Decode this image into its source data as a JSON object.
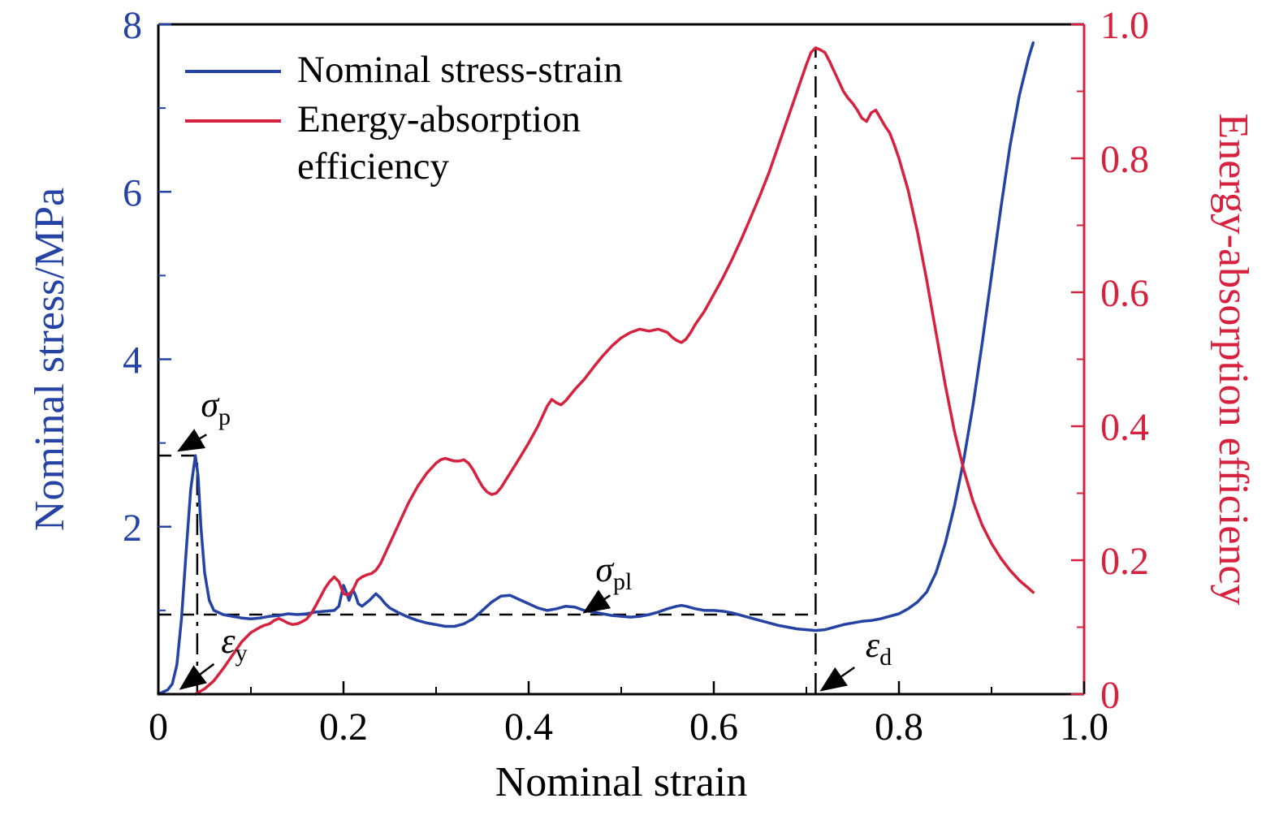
{
  "figure": {
    "background": "#ffffff"
  },
  "colors": {
    "stress": "#2543a4",
    "efficiency": "#d6213f",
    "axis": "#000000"
  },
  "legend": {
    "items": [
      {
        "label": "Nominal stress-strain",
        "color": "#2543a4"
      },
      {
        "label": "Energy-absorption efficiency",
        "color": "#d6213f"
      }
    ]
  },
  "chart_data": {
    "type": "line",
    "title": "",
    "xlabel": "Nominal strain",
    "ylabel_left": "Nominal stress/MPa",
    "ylabel_right": "Energy-absorption efficiency",
    "xlim": [
      0,
      1.0
    ],
    "ylim_left": [
      0,
      8
    ],
    "ylim_right": [
      0,
      1.0
    ],
    "grid": false,
    "legend_position": "top-left",
    "x_ticks": [
      {
        "v": 0,
        "label": "0"
      },
      {
        "v": 0.2,
        "label": "0.2"
      },
      {
        "v": 0.4,
        "label": "0.4"
      },
      {
        "v": 0.6,
        "label": "0.6"
      },
      {
        "v": 0.8,
        "label": "0.8"
      },
      {
        "v": 1.0,
        "label": "1.0"
      }
    ],
    "y_ticks_left": [
      {
        "v": 2,
        "label": "2"
      },
      {
        "v": 4,
        "label": "4"
      },
      {
        "v": 6,
        "label": "6"
      },
      {
        "v": 8,
        "label": "8"
      }
    ],
    "y_ticks_right": [
      {
        "v": 0,
        "label": "0"
      },
      {
        "v": 0.2,
        "label": "0.2"
      },
      {
        "v": 0.4,
        "label": "0.4"
      },
      {
        "v": 0.6,
        "label": "0.6"
      },
      {
        "v": 0.8,
        "label": "0.8"
      },
      {
        "v": 1.0,
        "label": "1.0"
      }
    ],
    "series": [
      {
        "name": "Nominal stress-strain",
        "axis": "left",
        "color": "#2543a4",
        "points": [
          [
            0.0,
            0.0
          ],
          [
            0.01,
            0.05
          ],
          [
            0.015,
            0.12
          ],
          [
            0.02,
            0.35
          ],
          [
            0.025,
            0.9
          ],
          [
            0.03,
            1.7
          ],
          [
            0.035,
            2.45
          ],
          [
            0.04,
            2.85
          ],
          [
            0.043,
            2.6
          ],
          [
            0.046,
            2.0
          ],
          [
            0.05,
            1.45
          ],
          [
            0.055,
            1.12
          ],
          [
            0.06,
            1.0
          ],
          [
            0.07,
            0.95
          ],
          [
            0.08,
            0.93
          ],
          [
            0.09,
            0.91
          ],
          [
            0.1,
            0.9
          ],
          [
            0.11,
            0.91
          ],
          [
            0.12,
            0.93
          ],
          [
            0.13,
            0.94
          ],
          [
            0.14,
            0.96
          ],
          [
            0.15,
            0.95
          ],
          [
            0.16,
            0.96
          ],
          [
            0.17,
            0.98
          ],
          [
            0.18,
            0.99
          ],
          [
            0.19,
            1.0
          ],
          [
            0.195,
            1.05
          ],
          [
            0.2,
            1.3
          ],
          [
            0.203,
            1.22
          ],
          [
            0.206,
            1.12
          ],
          [
            0.21,
            1.25
          ],
          [
            0.213,
            1.18
          ],
          [
            0.216,
            1.08
          ],
          [
            0.22,
            1.05
          ],
          [
            0.228,
            1.12
          ],
          [
            0.235,
            1.2
          ],
          [
            0.24,
            1.15
          ],
          [
            0.245,
            1.08
          ],
          [
            0.25,
            1.03
          ],
          [
            0.26,
            0.97
          ],
          [
            0.27,
            0.92
          ],
          [
            0.28,
            0.88
          ],
          [
            0.29,
            0.85
          ],
          [
            0.3,
            0.83
          ],
          [
            0.31,
            0.81
          ],
          [
            0.32,
            0.81
          ],
          [
            0.33,
            0.84
          ],
          [
            0.34,
            0.9
          ],
          [
            0.35,
            1.0
          ],
          [
            0.36,
            1.1
          ],
          [
            0.37,
            1.17
          ],
          [
            0.38,
            1.18
          ],
          [
            0.39,
            1.13
          ],
          [
            0.4,
            1.08
          ],
          [
            0.41,
            1.03
          ],
          [
            0.42,
            1.0
          ],
          [
            0.43,
            1.02
          ],
          [
            0.44,
            1.05
          ],
          [
            0.45,
            1.04
          ],
          [
            0.46,
            1.0
          ],
          [
            0.47,
            0.98
          ],
          [
            0.48,
            0.96
          ],
          [
            0.49,
            0.94
          ],
          [
            0.5,
            0.93
          ],
          [
            0.51,
            0.92
          ],
          [
            0.52,
            0.93
          ],
          [
            0.53,
            0.95
          ],
          [
            0.54,
            0.98
          ],
          [
            0.55,
            1.02
          ],
          [
            0.56,
            1.05
          ],
          [
            0.565,
            1.06
          ],
          [
            0.57,
            1.05
          ],
          [
            0.58,
            1.02
          ],
          [
            0.59,
            1.0
          ],
          [
            0.6,
            1.0
          ],
          [
            0.61,
            0.99
          ],
          [
            0.62,
            0.97
          ],
          [
            0.63,
            0.94
          ],
          [
            0.64,
            0.91
          ],
          [
            0.65,
            0.88
          ],
          [
            0.66,
            0.85
          ],
          [
            0.67,
            0.82
          ],
          [
            0.68,
            0.8
          ],
          [
            0.69,
            0.78
          ],
          [
            0.7,
            0.77
          ],
          [
            0.71,
            0.76
          ],
          [
            0.72,
            0.77
          ],
          [
            0.73,
            0.8
          ],
          [
            0.74,
            0.83
          ],
          [
            0.75,
            0.85
          ],
          [
            0.76,
            0.87
          ],
          [
            0.77,
            0.88
          ],
          [
            0.78,
            0.9
          ],
          [
            0.79,
            0.93
          ],
          [
            0.8,
            0.96
          ],
          [
            0.81,
            1.02
          ],
          [
            0.82,
            1.1
          ],
          [
            0.83,
            1.22
          ],
          [
            0.84,
            1.45
          ],
          [
            0.85,
            1.8
          ],
          [
            0.86,
            2.25
          ],
          [
            0.87,
            2.8
          ],
          [
            0.88,
            3.45
          ],
          [
            0.89,
            4.2
          ],
          [
            0.9,
            5.0
          ],
          [
            0.91,
            5.8
          ],
          [
            0.92,
            6.55
          ],
          [
            0.93,
            7.15
          ],
          [
            0.94,
            7.6
          ],
          [
            0.945,
            7.78
          ]
        ]
      },
      {
        "name": "Energy-absorption efficiency",
        "axis": "right",
        "color": "#d6213f",
        "points": [
          [
            0.04,
            0.0
          ],
          [
            0.05,
            0.008
          ],
          [
            0.06,
            0.02
          ],
          [
            0.07,
            0.038
          ],
          [
            0.08,
            0.058
          ],
          [
            0.09,
            0.078
          ],
          [
            0.1,
            0.092
          ],
          [
            0.11,
            0.1
          ],
          [
            0.115,
            0.103
          ],
          [
            0.12,
            0.105
          ],
          [
            0.125,
            0.11
          ],
          [
            0.13,
            0.113
          ],
          [
            0.135,
            0.11
          ],
          [
            0.14,
            0.106
          ],
          [
            0.145,
            0.104
          ],
          [
            0.15,
            0.105
          ],
          [
            0.155,
            0.108
          ],
          [
            0.16,
            0.112
          ],
          [
            0.165,
            0.12
          ],
          [
            0.17,
            0.132
          ],
          [
            0.175,
            0.145
          ],
          [
            0.18,
            0.158
          ],
          [
            0.185,
            0.168
          ],
          [
            0.19,
            0.175
          ],
          [
            0.195,
            0.168
          ],
          [
            0.2,
            0.15
          ],
          [
            0.205,
            0.148
          ],
          [
            0.21,
            0.155
          ],
          [
            0.215,
            0.17
          ],
          [
            0.22,
            0.175
          ],
          [
            0.225,
            0.178
          ],
          [
            0.23,
            0.18
          ],
          [
            0.235,
            0.185
          ],
          [
            0.24,
            0.195
          ],
          [
            0.25,
            0.225
          ],
          [
            0.26,
            0.255
          ],
          [
            0.27,
            0.285
          ],
          [
            0.28,
            0.31
          ],
          [
            0.29,
            0.33
          ],
          [
            0.3,
            0.345
          ],
          [
            0.305,
            0.35
          ],
          [
            0.31,
            0.352
          ],
          [
            0.315,
            0.35
          ],
          [
            0.32,
            0.348
          ],
          [
            0.325,
            0.348
          ],
          [
            0.33,
            0.35
          ],
          [
            0.335,
            0.345
          ],
          [
            0.34,
            0.335
          ],
          [
            0.345,
            0.322
          ],
          [
            0.35,
            0.31
          ],
          [
            0.355,
            0.302
          ],
          [
            0.36,
            0.298
          ],
          [
            0.365,
            0.3
          ],
          [
            0.37,
            0.308
          ],
          [
            0.38,
            0.33
          ],
          [
            0.39,
            0.352
          ],
          [
            0.4,
            0.375
          ],
          [
            0.41,
            0.4
          ],
          [
            0.415,
            0.415
          ],
          [
            0.42,
            0.43
          ],
          [
            0.425,
            0.44
          ],
          [
            0.43,
            0.435
          ],
          [
            0.435,
            0.432
          ],
          [
            0.44,
            0.438
          ],
          [
            0.45,
            0.455
          ],
          [
            0.46,
            0.47
          ],
          [
            0.47,
            0.488
          ],
          [
            0.48,
            0.505
          ],
          [
            0.49,
            0.52
          ],
          [
            0.5,
            0.532
          ],
          [
            0.51,
            0.54
          ],
          [
            0.52,
            0.545
          ],
          [
            0.53,
            0.542
          ],
          [
            0.54,
            0.545
          ],
          [
            0.55,
            0.54
          ],
          [
            0.555,
            0.533
          ],
          [
            0.56,
            0.528
          ],
          [
            0.565,
            0.525
          ],
          [
            0.57,
            0.53
          ],
          [
            0.575,
            0.54
          ],
          [
            0.58,
            0.552
          ],
          [
            0.59,
            0.572
          ],
          [
            0.6,
            0.597
          ],
          [
            0.61,
            0.622
          ],
          [
            0.62,
            0.65
          ],
          [
            0.63,
            0.68
          ],
          [
            0.64,
            0.712
          ],
          [
            0.65,
            0.745
          ],
          [
            0.66,
            0.78
          ],
          [
            0.67,
            0.82
          ],
          [
            0.68,
            0.86
          ],
          [
            0.69,
            0.9
          ],
          [
            0.7,
            0.94
          ],
          [
            0.705,
            0.958
          ],
          [
            0.71,
            0.965
          ],
          [
            0.715,
            0.962
          ],
          [
            0.72,
            0.958
          ],
          [
            0.725,
            0.945
          ],
          [
            0.73,
            0.93
          ],
          [
            0.735,
            0.915
          ],
          [
            0.74,
            0.9
          ],
          [
            0.745,
            0.89
          ],
          [
            0.75,
            0.882
          ],
          [
            0.755,
            0.872
          ],
          [
            0.76,
            0.86
          ],
          [
            0.765,
            0.855
          ],
          [
            0.77,
            0.868
          ],
          [
            0.775,
            0.872
          ],
          [
            0.78,
            0.86
          ],
          [
            0.785,
            0.848
          ],
          [
            0.79,
            0.838
          ],
          [
            0.795,
            0.82
          ],
          [
            0.8,
            0.8
          ],
          [
            0.81,
            0.752
          ],
          [
            0.82,
            0.69
          ],
          [
            0.83,
            0.618
          ],
          [
            0.84,
            0.54
          ],
          [
            0.85,
            0.462
          ],
          [
            0.86,
            0.392
          ],
          [
            0.87,
            0.335
          ],
          [
            0.88,
            0.288
          ],
          [
            0.89,
            0.252
          ],
          [
            0.9,
            0.225
          ],
          [
            0.91,
            0.203
          ],
          [
            0.92,
            0.185
          ],
          [
            0.93,
            0.17
          ],
          [
            0.94,
            0.158
          ],
          [
            0.945,
            0.152
          ]
        ]
      }
    ],
    "guides": {
      "peak": {
        "strain": 0.042,
        "stress": 2.85
      },
      "plateau": {
        "stress": 0.95,
        "to_strain": 0.71
      },
      "densification": {
        "strain": 0.71,
        "top_stress": 7.72
      }
    },
    "annotations": [
      {
        "id": "sigma-p",
        "symbol": "σ",
        "subscript": "p",
        "label_pos": [
          0.062,
          3.42
        ],
        "arrow_from": [
          0.052,
          3.1
        ],
        "arrow_to": [
          0.024,
          2.92
        ]
      },
      {
        "id": "eps-y",
        "symbol": "ε",
        "subscript": "y",
        "label_pos": [
          0.082,
          0.6
        ],
        "arrow_from": [
          0.06,
          0.36
        ],
        "arrow_to": [
          0.026,
          0.08
        ]
      },
      {
        "id": "sigma-pl",
        "symbol": "σ",
        "subscript": "pl",
        "label_pos": [
          0.492,
          1.45
        ],
        "arrow_from": [
          0.488,
          1.18
        ],
        "arrow_to": [
          0.462,
          0.99
        ]
      },
      {
        "id": "eps-d",
        "symbol": "ε",
        "subscript": "d",
        "label_pos": [
          0.778,
          0.55
        ],
        "arrow_from": [
          0.752,
          0.32
        ],
        "arrow_to": [
          0.718,
          0.06
        ]
      }
    ]
  }
}
